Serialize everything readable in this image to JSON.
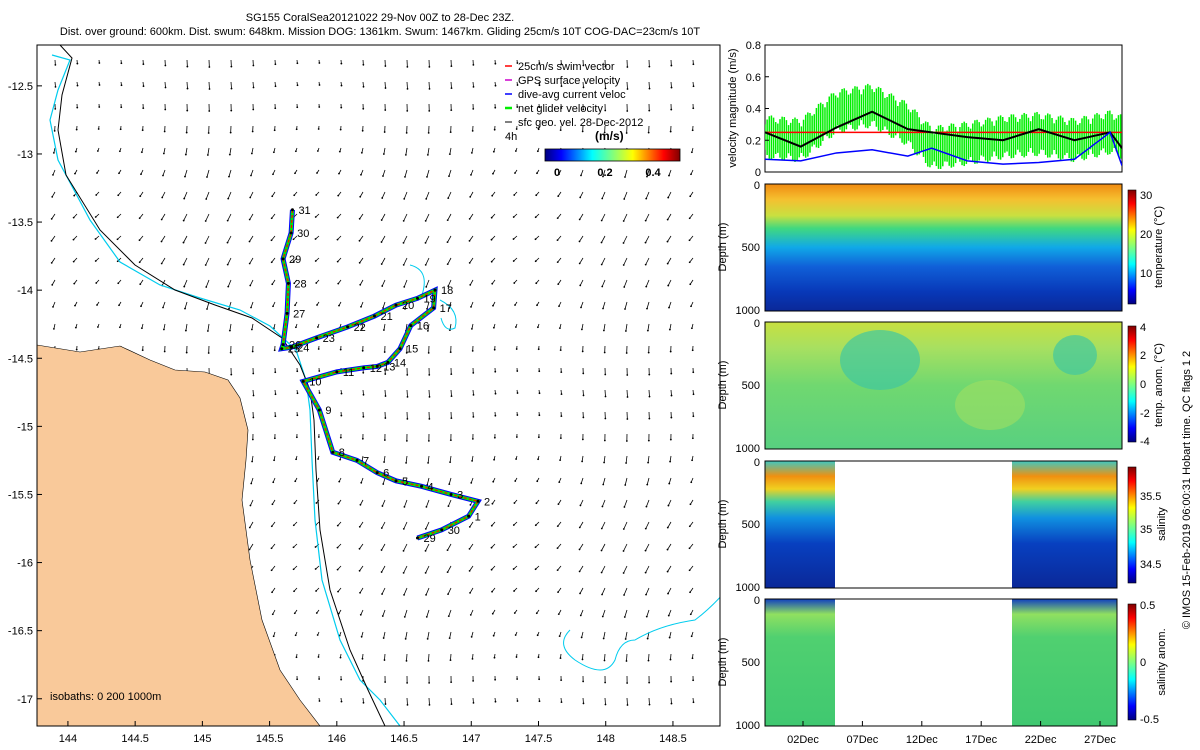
{
  "title_line1": "SG155 CoralSea20121022 29-Nov 00Z to 28-Dec 23Z.",
  "title_line2": "Dist. over ground: 600km. Dist. swum: 648km. Mission DOG: 1361km. Swum: 1467km. Gliding 25cm/s 10T COG-DAC=23cm/s 10T",
  "copyright": "© IMOS 15-Feb-2019 06:00:31 Hobart time. QC flags 1 2",
  "colors": {
    "land": "#f9c99a",
    "isobath200": "#00ccee",
    "isobath1000": "#000000",
    "track_red": "#ff0000",
    "track_blue": "#0000ff",
    "track_green": "#00ee00",
    "speed_black": "#000000"
  },
  "chart_data": [
    {
      "type": "scatter",
      "panel": "map",
      "xticks": [
        "144",
        "144.5",
        "145",
        "145.5",
        "146",
        "146.5",
        "147",
        "147.5",
        "148",
        "148.5"
      ],
      "yticks": [
        "-12.5",
        "-13",
        "-13.5",
        "-14",
        "-14.5",
        "-15",
        "-15.5",
        "-16",
        "-16.5",
        "-17"
      ],
      "xlim": [
        143.77,
        148.85
      ],
      "ylim": [
        -17.2,
        -12.2
      ],
      "legend": [
        "25cm/s swim vector",
        "GPS surface velocity",
        "dive-avg current veloc",
        "net glider velocity",
        "sfc geo. vel. 28-Dec-2012"
      ],
      "legend_extra": "4h",
      "colorbar": {
        "label": "(m/s)",
        "ticks": [
          "0",
          "0.2",
          "0.4"
        ],
        "range": [
          0,
          0.5
        ]
      },
      "isobath_note": "isobaths: 0   200  1000m",
      "track": [
        {
          "lon": 146.6,
          "lat": -15.82,
          "day": "29"
        },
        {
          "lon": 146.78,
          "lat": -15.76,
          "day": "30"
        },
        {
          "lon": 146.98,
          "lat": -15.66,
          "day": "1"
        },
        {
          "lon": 147.05,
          "lat": -15.55,
          "day": "2"
        },
        {
          "lon": 146.85,
          "lat": -15.5,
          "day": "3"
        },
        {
          "lon": 146.63,
          "lat": -15.44,
          "day": "4"
        },
        {
          "lon": 146.44,
          "lat": -15.4,
          "day": "5"
        },
        {
          "lon": 146.3,
          "lat": -15.34,
          "day": "6"
        },
        {
          "lon": 146.15,
          "lat": -15.25,
          "day": "7"
        },
        {
          "lon": 145.97,
          "lat": -15.19,
          "day": "8"
        },
        {
          "lon": 145.87,
          "lat": -14.88,
          "day": "9"
        },
        {
          "lon": 145.75,
          "lat": -14.67,
          "day": "10"
        },
        {
          "lon": 146.0,
          "lat": -14.6,
          "day": "11"
        },
        {
          "lon": 146.2,
          "lat": -14.57,
          "day": "12"
        },
        {
          "lon": 146.3,
          "lat": -14.56,
          "day": "13"
        },
        {
          "lon": 146.38,
          "lat": -14.53,
          "day": "14"
        },
        {
          "lon": 146.47,
          "lat": -14.43,
          "day": "15"
        },
        {
          "lon": 146.55,
          "lat": -14.26,
          "day": "16"
        },
        {
          "lon": 146.72,
          "lat": -14.13,
          "day": "17"
        },
        {
          "lon": 146.73,
          "lat": -14.0,
          "day": "18"
        },
        {
          "lon": 146.6,
          "lat": -14.06,
          "day": "19"
        },
        {
          "lon": 146.44,
          "lat": -14.11,
          "day": "20"
        },
        {
          "lon": 146.28,
          "lat": -14.19,
          "day": "21"
        },
        {
          "lon": 146.08,
          "lat": -14.27,
          "day": "22"
        },
        {
          "lon": 145.85,
          "lat": -14.35,
          "day": "23"
        },
        {
          "lon": 145.66,
          "lat": -14.42,
          "day": "24"
        },
        {
          "lon": 145.59,
          "lat": -14.43,
          "day": "25"
        },
        {
          "lon": 145.6,
          "lat": -14.4,
          "day": "26"
        },
        {
          "lon": 145.63,
          "lat": -14.17,
          "day": "27"
        },
        {
          "lon": 145.64,
          "lat": -13.95,
          "day": "28"
        },
        {
          "lon": 145.6,
          "lat": -13.77,
          "day": "29"
        },
        {
          "lon": 145.66,
          "lat": -13.58,
          "day": "30"
        },
        {
          "lon": 145.67,
          "lat": -13.41,
          "day": "31"
        }
      ]
    },
    {
      "type": "line",
      "panel": "velocity",
      "ylabel": "velocity magnitude (m/s)",
      "ylim": [
        0,
        0.8
      ],
      "yticks": [
        "0",
        "0.2",
        "0.4",
        "0.6",
        "0.8"
      ],
      "x_days": [
        0,
        3,
        6,
        9,
        12,
        14,
        17,
        20,
        23,
        26,
        29,
        30
      ],
      "series": [
        {
          "color": "red",
          "values": [
            0.25,
            0.25,
            0.25,
            0.25,
            0.25,
            0.25,
            0.25,
            0.25,
            0.25,
            0.25,
            0.25,
            0.25
          ]
        },
        {
          "color": "black",
          "values": [
            0.25,
            0.16,
            0.28,
            0.38,
            0.27,
            0.25,
            0.22,
            0.2,
            0.27,
            0.2,
            0.25,
            0.15
          ]
        },
        {
          "color": "blue",
          "values": [
            0.08,
            0.07,
            0.12,
            0.14,
            0.1,
            0.15,
            0.07,
            0.05,
            0.06,
            0.08,
            0.25,
            0.04
          ]
        },
        {
          "color": "green",
          "values": [
            0.22,
            0.2,
            0.38,
            0.42,
            0.3,
            0.15,
            0.18,
            0.22,
            0.24,
            0.2,
            0.25,
            0.22
          ]
        }
      ]
    },
    {
      "type": "heatmap",
      "panel": "temperature",
      "ylabel": "Depth (m)",
      "yticks": [
        "0",
        "500",
        "1000"
      ],
      "colorbar_label": "temperature (°C)",
      "colorbar_ticks": [
        "30",
        "20",
        "10"
      ],
      "clim": [
        4,
        32
      ]
    },
    {
      "type": "heatmap",
      "panel": "temp-anomaly",
      "ylabel": "Depth (m)",
      "yticks": [
        "0",
        "500",
        "1000"
      ],
      "colorbar_label": "temp. anom. (°C)",
      "colorbar_ticks": [
        "4",
        "2",
        "0",
        "-2",
        "-4"
      ],
      "clim": [
        -4,
        4
      ]
    },
    {
      "type": "heatmap",
      "panel": "salinity",
      "ylabel": "Depth (m)",
      "yticks": [
        "0",
        "500",
        "1000"
      ],
      "colorbar_label": "salinity",
      "colorbar_ticks": [
        "35.5",
        "35",
        "34.5"
      ],
      "clim": [
        34.3,
        35.8
      ]
    },
    {
      "type": "heatmap",
      "panel": "salinity-anomaly",
      "ylabel": "Depth (m)",
      "yticks": [
        "0",
        "500",
        "1000"
      ],
      "colorbar_label": "salinity anom.",
      "colorbar_ticks": [
        "0.5",
        "0",
        "-0.5"
      ],
      "clim": [
        -0.5,
        0.5
      ],
      "xticks": [
        "02Dec",
        "07Dec",
        "12Dec",
        "17Dec",
        "22Dec",
        "27Dec"
      ]
    }
  ]
}
